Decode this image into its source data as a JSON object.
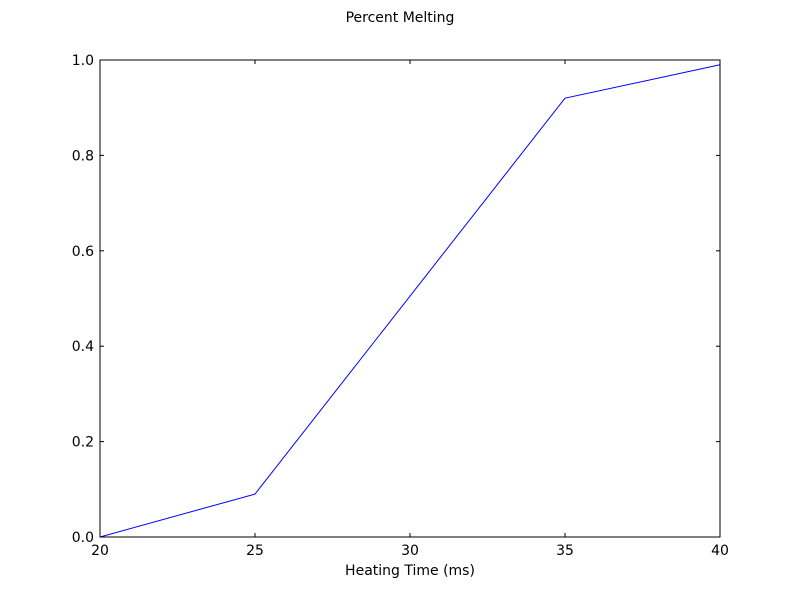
{
  "chart_data": {
    "type": "line",
    "title": "Percent Melting",
    "xlabel": "Heating Time (ms)",
    "ylabel": "",
    "xlim": [
      20,
      40
    ],
    "ylim": [
      0,
      1.0
    ],
    "xticks": [
      20,
      25,
      30,
      35,
      40
    ],
    "yticks": [
      0.0,
      0.2,
      0.4,
      0.6,
      0.8,
      1.0
    ],
    "xtick_labels": [
      "20",
      "25",
      "30",
      "35",
      "40"
    ],
    "ytick_labels": [
      "0.0",
      "0.2",
      "0.4",
      "0.6",
      "0.8",
      "1.0"
    ],
    "grid": false,
    "series": [
      {
        "color": "#0000ff",
        "x": [
          20,
          25,
          35,
          40
        ],
        "y": [
          0.0,
          0.09,
          0.92,
          0.99
        ]
      }
    ]
  }
}
